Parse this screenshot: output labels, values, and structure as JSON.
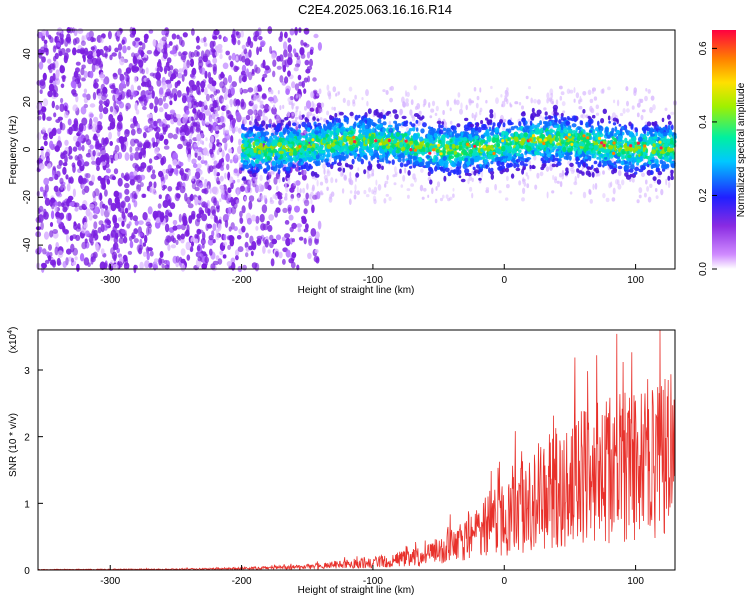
{
  "title": "C2E4.2025.063.16.16.R14",
  "colors": {
    "snr_line": "#e8312b",
    "axis": "#000000"
  },
  "chart_data": [
    {
      "type": "heatmap",
      "xlabel": "Height of straight line (km)",
      "ylabel": "Frequency (Hz)",
      "xlim": [
        -355,
        130
      ],
      "ylim": [
        -50,
        50
      ],
      "x_ticks": [
        -300,
        -200,
        -100,
        0,
        100
      ],
      "y_ticks": [
        -40,
        -20,
        0,
        20,
        40
      ],
      "colorbar": {
        "label": "Normalized spectral amplitude",
        "range": [
          0,
          0.65
        ],
        "ticks": [
          0.0,
          0.2,
          0.4,
          0.6
        ]
      },
      "signal_band": {
        "x_start": -200,
        "center_hz": 2,
        "half_width_hz": 8
      }
    },
    {
      "type": "line",
      "xlabel": "Height of straight line (km)",
      "ylabel": "SNR (10 * v/v)",
      "multiplier": "(x10",
      "multiplier_exp": "4",
      "multiplier_close": ")",
      "xlim": [
        -355,
        130
      ],
      "ylim": [
        0,
        3.6
      ],
      "x_ticks": [
        -300,
        -200,
        -100,
        0,
        100
      ],
      "y_ticks": [
        0,
        1,
        2,
        3
      ],
      "envelope": [
        {
          "x": -355,
          "y": 0.01
        },
        {
          "x": -250,
          "y": 0.02
        },
        {
          "x": -200,
          "y": 0.04
        },
        {
          "x": -150,
          "y": 0.08
        },
        {
          "x": -100,
          "y": 0.2
        },
        {
          "x": -60,
          "y": 0.35
        },
        {
          "x": -30,
          "y": 0.8
        },
        {
          "x": 0,
          "y": 1.4
        },
        {
          "x": 30,
          "y": 2.0
        },
        {
          "x": 60,
          "y": 2.5
        },
        {
          "x": 100,
          "y": 2.7
        },
        {
          "x": 125,
          "y": 3.0
        }
      ]
    }
  ]
}
